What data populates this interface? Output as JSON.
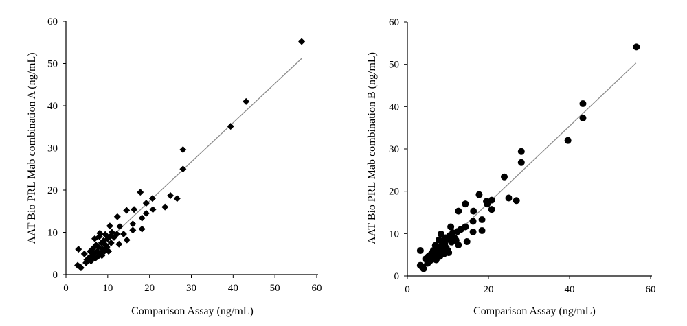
{
  "chart_data": [
    {
      "type": "scatter",
      "marker": "diamond",
      "xlabel": "Comparison Assay (ng/mL)",
      "ylabel": "AAT Bio PRL Mab combination A (ng/mL)",
      "xlim": [
        0,
        60
      ],
      "ylim": [
        0,
        60
      ],
      "xticks": [
        "0",
        "10",
        "20",
        "30",
        "40",
        "50",
        "60"
      ],
      "yticks": [
        "0",
        "10",
        "20",
        "30",
        "40",
        "50",
        "60"
      ],
      "grid": false,
      "marker_color": "#000000",
      "trendline": {
        "x": [
          3,
          56.4
        ],
        "y": [
          1.6,
          51.2
        ],
        "color": "#8c8c8c"
      },
      "points": [
        [
          3.0,
          6.0
        ],
        [
          2.8,
          2.2
        ],
        [
          3.6,
          1.6
        ],
        [
          3.3,
          1.9
        ],
        [
          4.4,
          4.9
        ],
        [
          4.8,
          2.8
        ],
        [
          5.0,
          3.5
        ],
        [
          5.5,
          4.0
        ],
        [
          5.8,
          5.5
        ],
        [
          6.0,
          3.2
        ],
        [
          6.2,
          4.5
        ],
        [
          6.5,
          6.2
        ],
        [
          6.8,
          5.0
        ],
        [
          6.9,
          8.5
        ],
        [
          7.0,
          3.8
        ],
        [
          7.2,
          7.0
        ],
        [
          7.5,
          5.5
        ],
        [
          7.6,
          4.2
        ],
        [
          7.8,
          6.5
        ],
        [
          8.0,
          9.0
        ],
        [
          8.1,
          9.8
        ],
        [
          8.2,
          5.0
        ],
        [
          8.5,
          7.5
        ],
        [
          8.6,
          4.5
        ],
        [
          8.8,
          6.0
        ],
        [
          9.0,
          8.0
        ],
        [
          9.2,
          5.5
        ],
        [
          9.4,
          9.5
        ],
        [
          9.5,
          7.0
        ],
        [
          9.8,
          6.5
        ],
        [
          10.0,
          8.5
        ],
        [
          10.2,
          5.5
        ],
        [
          10.5,
          11.5
        ],
        [
          10.6,
          9.0
        ],
        [
          10.8,
          7.5
        ],
        [
          11.0,
          10.0
        ],
        [
          11.5,
          8.8
        ],
        [
          12.2,
          9.6
        ],
        [
          12.3,
          13.7
        ],
        [
          12.7,
          7.2
        ],
        [
          12.9,
          11.4
        ],
        [
          13.8,
          9.6
        ],
        [
          14.5,
          15.2
        ],
        [
          14.6,
          8.2
        ],
        [
          16.0,
          12.0
        ],
        [
          16.0,
          10.5
        ],
        [
          16.3,
          15.4
        ],
        [
          17.8,
          19.5
        ],
        [
          18.2,
          13.4
        ],
        [
          18.2,
          10.8
        ],
        [
          19.2,
          14.5
        ],
        [
          19.2,
          16.9
        ],
        [
          20.7,
          18.0
        ],
        [
          20.8,
          15.4
        ],
        [
          23.7,
          16.0
        ],
        [
          25.0,
          18.7
        ],
        [
          26.6,
          18.0
        ],
        [
          28.0,
          29.6
        ],
        [
          28.0,
          25.0
        ],
        [
          39.4,
          35.1
        ],
        [
          43.1,
          41.0
        ],
        [
          56.4,
          55.2
        ]
      ]
    },
    {
      "type": "scatter",
      "marker": "circle",
      "xlabel": "Comparison Assay (ng/mL)",
      "ylabel": "AAT Bio PRL Mab combination B (ng/mL)",
      "xlim": [
        0,
        60
      ],
      "ylim": [
        0,
        60
      ],
      "xticks": [
        "0",
        "20",
        "40",
        "60"
      ],
      "yticks": [
        "0",
        "10",
        "20",
        "30",
        "40",
        "50",
        "60"
      ],
      "grid": false,
      "marker_color": "#000000",
      "trendline": {
        "x": [
          3,
          56.4
        ],
        "y": [
          1.8,
          50.3
        ],
        "color": "#8c8c8c"
      },
      "points": [
        [
          3.2,
          6.0
        ],
        [
          3.2,
          2.5
        ],
        [
          4.0,
          1.7
        ],
        [
          3.6,
          2.2
        ],
        [
          4.5,
          4.0
        ],
        [
          5.0,
          3.0
        ],
        [
          5.2,
          4.6
        ],
        [
          5.6,
          3.6
        ],
        [
          5.9,
          5.2
        ],
        [
          6.2,
          4.2
        ],
        [
          6.4,
          6.0
        ],
        [
          6.7,
          4.8
        ],
        [
          6.9,
          7.2
        ],
        [
          7.1,
          3.8
        ],
        [
          7.3,
          6.4
        ],
        [
          7.6,
          5.4
        ],
        [
          7.8,
          8.5
        ],
        [
          8.0,
          4.6
        ],
        [
          8.2,
          7.0
        ],
        [
          8.3,
          9.9
        ],
        [
          8.5,
          6.0
        ],
        [
          8.8,
          8.2
        ],
        [
          9.0,
          5.2
        ],
        [
          9.2,
          7.5
        ],
        [
          9.4,
          9.0
        ],
        [
          9.6,
          6.6
        ],
        [
          9.8,
          8.6
        ],
        [
          10.0,
          6.0
        ],
        [
          10.2,
          5.5
        ],
        [
          10.4,
          9.5
        ],
        [
          10.7,
          11.6
        ],
        [
          10.9,
          8.0
        ],
        [
          11.2,
          10.2
        ],
        [
          11.6,
          9.0
        ],
        [
          12.0,
          8.4
        ],
        [
          12.4,
          10.5
        ],
        [
          12.6,
          7.3
        ],
        [
          12.6,
          15.3
        ],
        [
          13.2,
          11.0
        ],
        [
          14.3,
          17.0
        ],
        [
          14.3,
          11.6
        ],
        [
          14.7,
          8.1
        ],
        [
          16.2,
          12.9
        ],
        [
          16.2,
          10.4
        ],
        [
          16.3,
          15.3
        ],
        [
          17.7,
          19.2
        ],
        [
          18.4,
          13.3
        ],
        [
          18.4,
          10.7
        ],
        [
          19.5,
          17.6
        ],
        [
          19.7,
          17.0
        ],
        [
          20.8,
          17.9
        ],
        [
          20.8,
          15.7
        ],
        [
          23.9,
          23.4
        ],
        [
          25.0,
          18.4
        ],
        [
          26.9,
          17.8
        ],
        [
          28.1,
          29.4
        ],
        [
          28.1,
          26.8
        ],
        [
          39.6,
          32.0
        ],
        [
          43.3,
          40.7
        ],
        [
          43.3,
          37.3
        ],
        [
          56.5,
          54.1
        ]
      ]
    }
  ]
}
